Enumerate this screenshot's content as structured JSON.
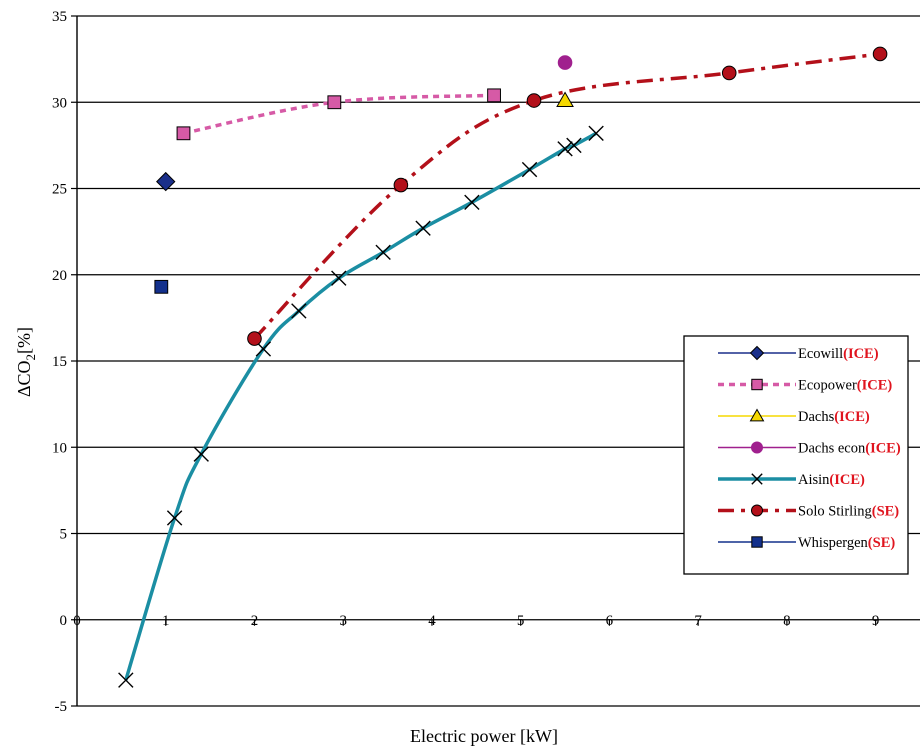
{
  "chart_data": {
    "type": "line",
    "xlabel": "Electric power [kW]",
    "ylabel": {
      "prefix": "ΔCO",
      "sub": "2",
      "suffix": "[%]"
    },
    "xlim": [
      0,
      9.5
    ],
    "ylim": [
      -5,
      35
    ],
    "x_ticks": [
      0,
      1,
      2,
      3,
      4,
      5,
      6,
      7,
      8,
      9
    ],
    "y_ticks": [
      -5,
      0,
      5,
      10,
      15,
      20,
      25,
      30,
      35
    ],
    "grid": "horizontal",
    "legend_position": "right",
    "series": [
      {
        "name": "Ecowill",
        "tag": "(ICE)",
        "color": "#1a2f8a",
        "marker": "diamond",
        "line": "none",
        "x": [
          1.0
        ],
        "y": [
          25.4
        ]
      },
      {
        "name": "Ecopower",
        "tag": "(ICE)",
        "color": "#d65aa6",
        "marker": "square",
        "line": "dotted",
        "x": [
          1.2,
          2.9,
          4.7
        ],
        "y": [
          28.2,
          30.0,
          30.4
        ]
      },
      {
        "name": "Dachs",
        "tag": "(ICE)",
        "color": "#f5d800",
        "marker": "triangle",
        "line": "none",
        "x": [
          5.5
        ],
        "y": [
          30.1
        ]
      },
      {
        "name": "Dachs econ",
        "tag": "(ICE)",
        "color": "#a0208e",
        "marker": "circle",
        "line": "none",
        "x": [
          5.5
        ],
        "y": [
          32.3
        ]
      },
      {
        "name": "Aisin",
        "tag": "(ICE)",
        "color": "#1b8ea3",
        "marker": "x",
        "line": "solid-thick",
        "x": [
          0.55,
          1.1,
          1.4,
          2.1,
          2.5,
          2.95,
          3.45,
          3.9,
          4.45,
          5.1,
          5.5,
          5.6,
          5.85
        ],
        "y": [
          -3.5,
          5.9,
          9.6,
          15.7,
          17.9,
          19.8,
          21.3,
          22.7,
          24.2,
          26.1,
          27.3,
          27.5,
          28.2
        ]
      },
      {
        "name": "Solo Stirling",
        "tag": "(SE)",
        "color": "#b3101a",
        "marker": "circle",
        "line": "dashdot",
        "x": [
          2.0,
          3.65,
          5.15,
          7.35,
          9.05
        ],
        "y": [
          16.3,
          25.2,
          30.1,
          31.7,
          32.8
        ]
      },
      {
        "name": "Whispergen",
        "tag": "(SE)",
        "color": "#13308c",
        "marker": "square",
        "line": "none",
        "x": [
          0.95
        ],
        "y": [
          19.3
        ]
      }
    ]
  }
}
